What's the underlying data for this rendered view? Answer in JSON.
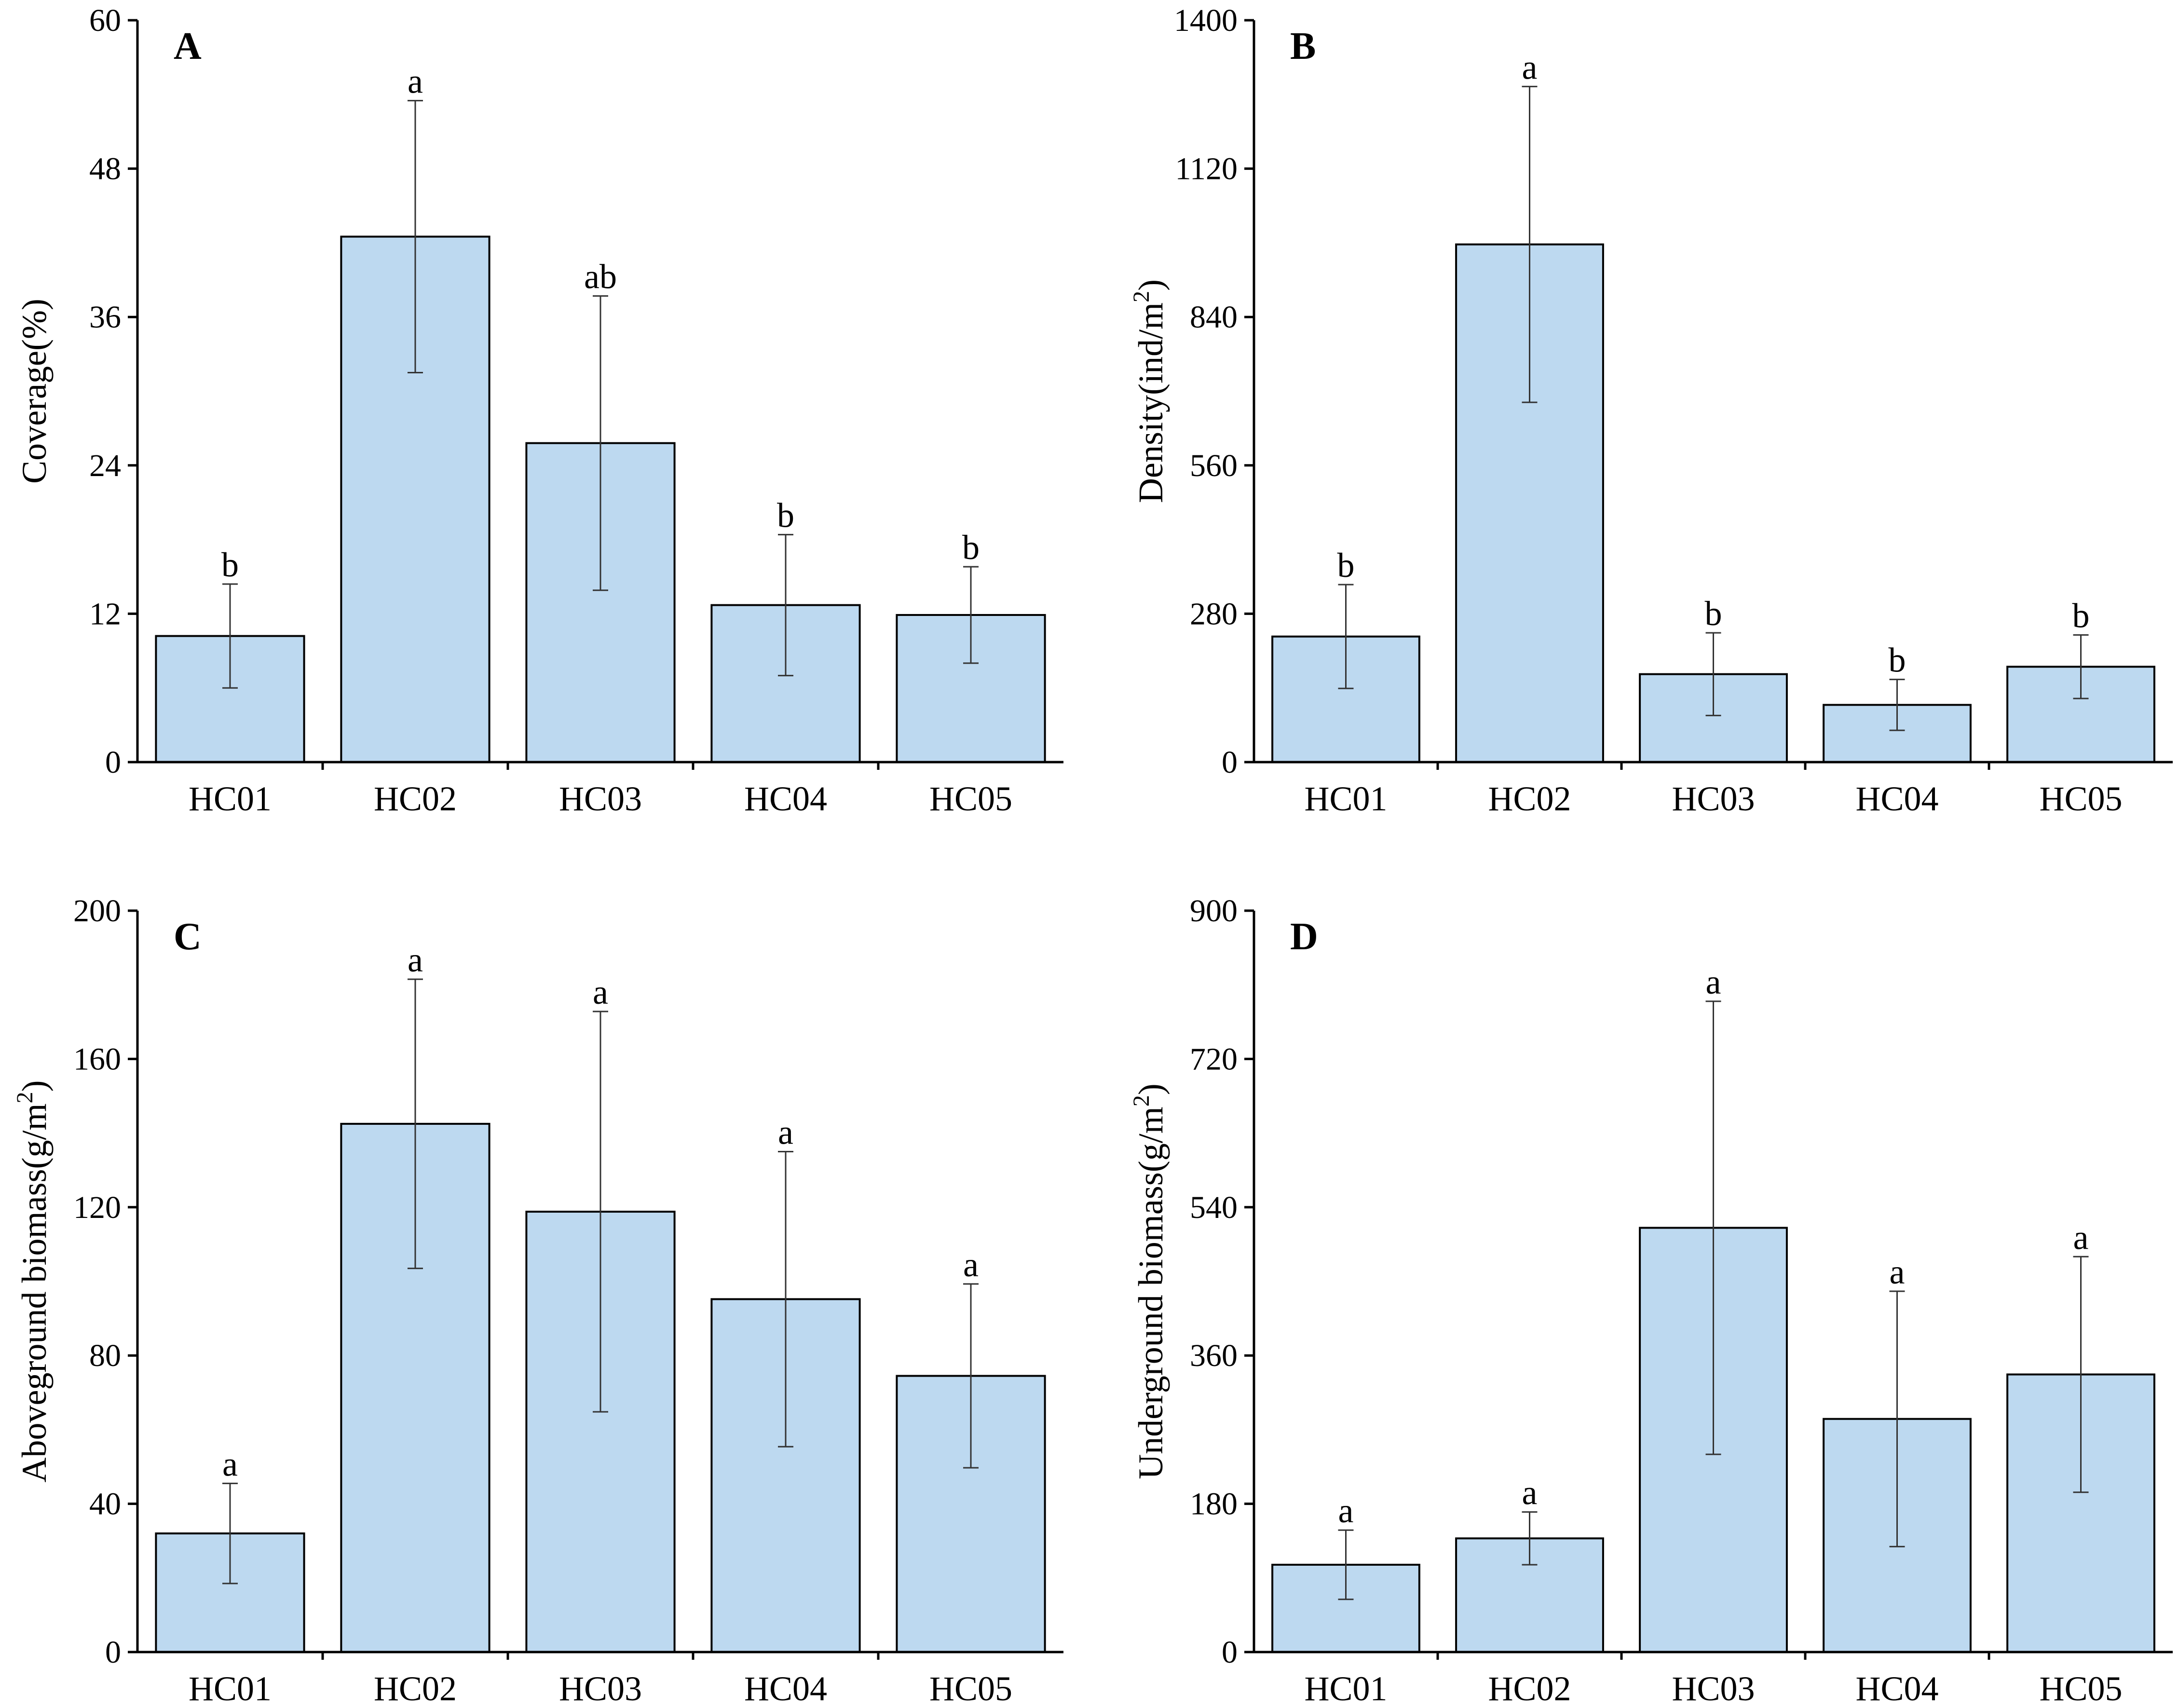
{
  "colors": {
    "bar_fill": "#bdd9f0",
    "bar_stroke": "#000000",
    "axis": "#000000"
  },
  "chart_data": [
    {
      "type": "bar",
      "panel": "A",
      "title": "",
      "xlabel": "",
      "ylabel": "Coverage(%)",
      "ylim": [
        0,
        60
      ],
      "yticks": [
        0,
        12,
        24,
        36,
        48,
        60
      ],
      "categories": [
        "HC01",
        "HC02",
        "HC03",
        "HC04",
        "HC05"
      ],
      "values": [
        10.2,
        42.5,
        25.8,
        12.7,
        11.9
      ],
      "errors": [
        4.2,
        11.0,
        11.9,
        5.7,
        3.9
      ],
      "significance": [
        "b",
        "a",
        "ab",
        "b",
        "b"
      ]
    },
    {
      "type": "bar",
      "panel": "B",
      "title": "",
      "xlabel": "",
      "ylabel_main": "Density(ind/m",
      "ylabel_sup": "2",
      "ylabel_end": ")",
      "ylim": [
        0,
        1400
      ],
      "yticks": [
        0,
        280,
        560,
        840,
        1120,
        1400
      ],
      "categories": [
        "HC01",
        "HC02",
        "HC03",
        "HC04",
        "HC05"
      ],
      "values": [
        237,
        977,
        166,
        108,
        180
      ],
      "errors": [
        98,
        298,
        78,
        48,
        60
      ],
      "significance": [
        "b",
        "a",
        "b",
        "b",
        "b"
      ]
    },
    {
      "type": "bar",
      "panel": "C",
      "title": "",
      "xlabel": "",
      "ylabel_main": "Aboveground biomass(g/m",
      "ylabel_sup": "2",
      "ylabel_end": ")",
      "ylim": [
        0,
        200
      ],
      "yticks": [
        0,
        40,
        80,
        120,
        160,
        200
      ],
      "categories": [
        "HC01",
        "HC02",
        "HC03",
        "HC04",
        "HC05"
      ],
      "values": [
        32,
        142.5,
        118.8,
        95.2,
        74.5
      ],
      "errors": [
        13.5,
        39.0,
        54.0,
        39.8,
        24.8
      ],
      "significance": [
        "a",
        "a",
        "a",
        "a",
        "a"
      ]
    },
    {
      "type": "bar",
      "panel": "D",
      "title": "",
      "xlabel": "",
      "ylabel_main": "Underground biomass(g/m",
      "ylabel_sup": "2",
      "ylabel_end": ")",
      "ylim": [
        0,
        900
      ],
      "yticks": [
        0,
        180,
        360,
        540,
        720,
        900
      ],
      "categories": [
        "HC01",
        "HC02",
        "HC03",
        "HC04",
        "HC05"
      ],
      "values": [
        106,
        138,
        515,
        283,
        337
      ],
      "errors": [
        42,
        32,
        275,
        155,
        143
      ],
      "significance": [
        "a",
        "a",
        "a",
        "a",
        "a"
      ]
    }
  ]
}
